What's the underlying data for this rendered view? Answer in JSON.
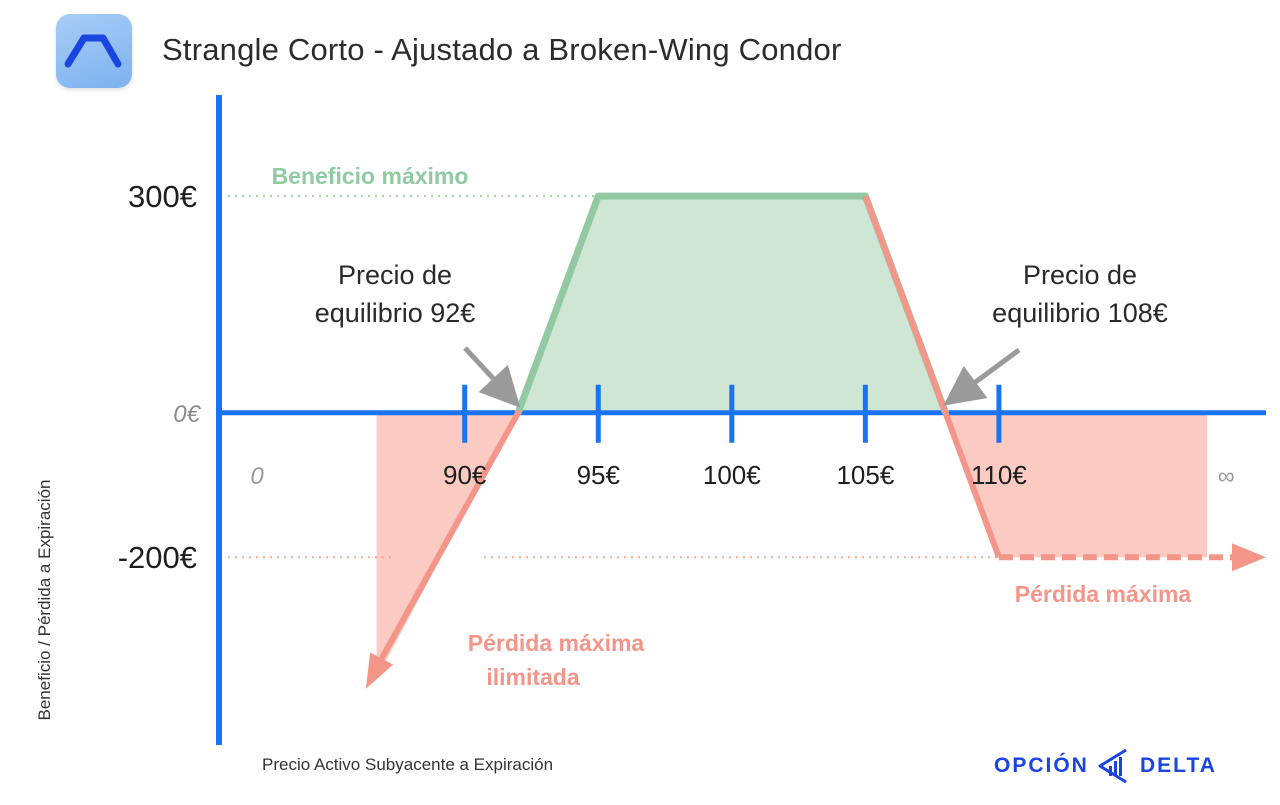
{
  "header": {
    "title": "Strangle Corto - Ajustado a Broken-Wing Condor",
    "icon": "payoff-diagram-icon"
  },
  "brand": {
    "word1": "OPCIÓN",
    "word2": "DELTA",
    "icon": "delta-logo-icon",
    "color": "#1a45e0"
  },
  "chart_data": {
    "type": "line",
    "title": "Strangle Corto - Ajustado a Broken-Wing Condor",
    "xlabel": "Precio Activo Subyacente a Expiración",
    "ylabel": "Beneficio / Pérdida a Expiración",
    "series": [
      {
        "x": [
          86.7,
          92,
          95,
          105,
          108,
          110,
          117.8
        ],
        "y": [
          -375,
          0,
          300,
          300,
          0,
          -200,
          -200
        ]
      }
    ],
    "xticks": [
      {
        "value": 90,
        "label": "90€"
      },
      {
        "value": 95,
        "label": "95€"
      },
      {
        "value": 100,
        "label": "100€"
      },
      {
        "value": 105,
        "label": "105€"
      },
      {
        "value": 110,
        "label": "110€"
      }
    ],
    "x_start_label": "0",
    "x_end_label": "∞",
    "yticks": [
      {
        "value": 300,
        "label": "300€"
      },
      {
        "value": 0,
        "label": "0€"
      },
      {
        "value": -200,
        "label": "-200€"
      }
    ],
    "xlim": [
      80.8,
      120
    ],
    "ylim": [
      -460,
      440
    ],
    "grid": false,
    "colors": {
      "axis": "#1a73f0",
      "profit_line": "#92c9a3",
      "profit_fill": "#cfe6d4",
      "loss_line": "#f4958a",
      "loss_fill": "#fbcbc3",
      "arrow": "#9a9a9a"
    },
    "annotations": {
      "max_profit": "Beneficio máximo",
      "breakeven_low_line1": "Precio de",
      "breakeven_low_line2": "equilibrio 92€",
      "breakeven_high_line1": "Precio de",
      "breakeven_high_line2": "equilibrio 108€",
      "max_loss": "Pérdida máxima",
      "unlimited_loss_line1": "Pérdida máxima",
      "unlimited_loss_line2": "ilimitada"
    }
  }
}
